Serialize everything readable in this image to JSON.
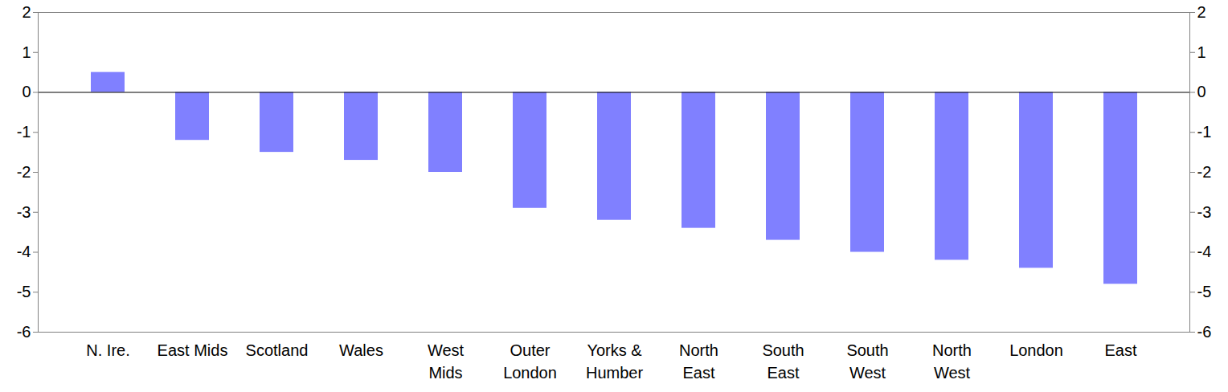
{
  "chart_data": {
    "type": "bar",
    "categories": [
      "N. Ire.",
      "East Mids",
      "Scotland",
      "Wales",
      "West\nMids",
      "Outer\nLondon",
      "Yorks &\nHumber",
      "North\nEast",
      "South\nEast",
      "South\nWest",
      "North\nWest",
      "London",
      "East"
    ],
    "values": [
      0.5,
      -1.2,
      -1.5,
      -1.7,
      -2.0,
      -2.9,
      -3.2,
      -3.4,
      -3.7,
      -4.0,
      -4.2,
      -4.4,
      -4.8
    ],
    "color": "#8080ff",
    "ylim": [
      -6,
      2
    ],
    "yticks": [
      -6,
      -5,
      -4,
      -3,
      -2,
      -1,
      0,
      1,
      2
    ],
    "grid": false
  }
}
